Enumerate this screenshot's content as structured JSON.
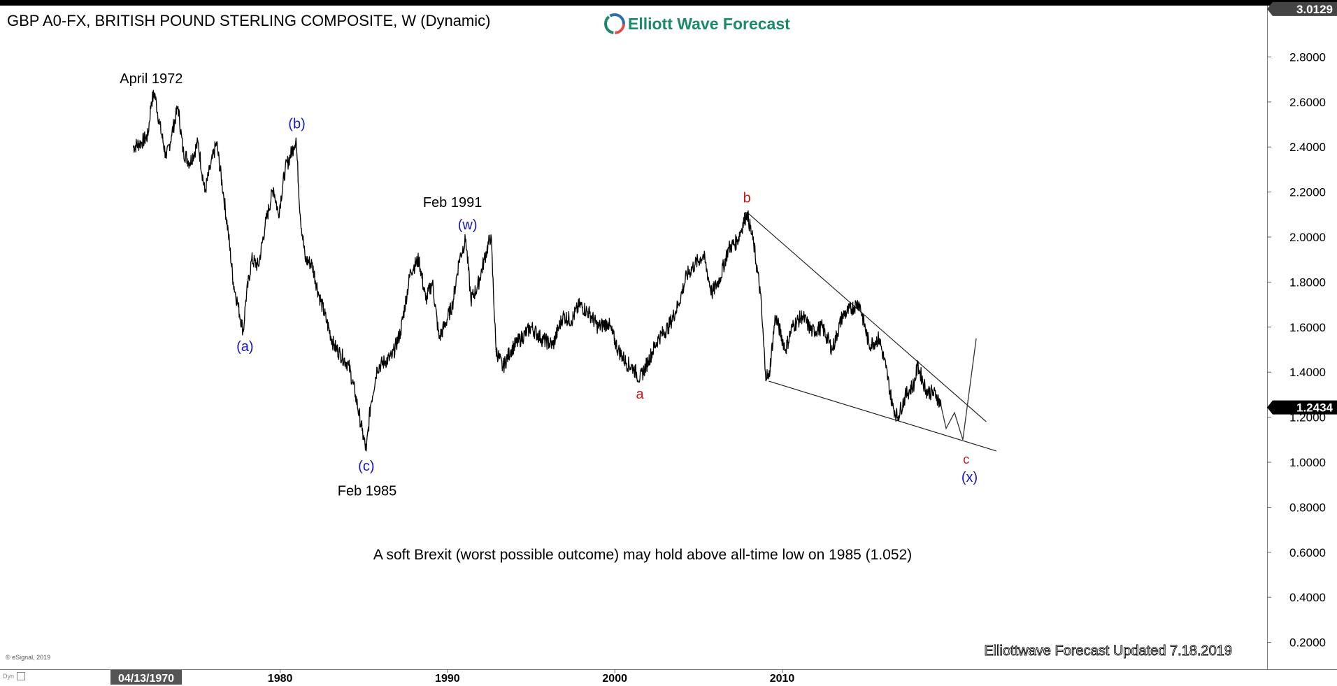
{
  "window": {
    "title": "GBP A0-FX, BRITISH POUND STERLING COMPOSITE, W (Dynamic)",
    "brand_name": "Elliott Wave Forecast",
    "copyright": "© eSignal, 2019",
    "dyn_label": "Dyn",
    "footer_note": "Elliottwave Forecast  Updated 7.18.2019"
  },
  "colors": {
    "price_line": "#000000",
    "wave_blue": "#1515c8",
    "wave_red": "#c81515",
    "current_price_tag_bg": "#000000",
    "current_price_tag_fg": "#ffffff",
    "top_price_tag_bg": "#444444",
    "brand": "#1a8a6a"
  },
  "chart_data": {
    "type": "line",
    "title": "GBP A0-FX, BRITISH POUND STERLING COMPOSITE, W (Dynamic)",
    "ylim": [
      0.1,
      3.0129
    ],
    "y_ticks": [
      "0.2000",
      "0.4000",
      "0.6000",
      "0.8000",
      "1.0000",
      "1.2000",
      "1.4000",
      "1.6000",
      "1.8000",
      "2.0000",
      "2.2000",
      "2.4000",
      "2.6000",
      "2.8000"
    ],
    "y_tick_values": [
      0.2,
      0.4,
      0.6,
      0.8,
      1.0,
      1.2,
      1.4,
      1.6,
      1.8,
      2.0,
      2.2,
      2.4,
      2.6,
      2.8
    ],
    "x_start_label": "04/13/1970",
    "x_ticks": [
      "1980",
      "1990",
      "2000",
      "2010"
    ],
    "x_tick_values": [
      1980,
      1990,
      2000,
      2010
    ],
    "current_price": "1.2434",
    "current_price_value": 1.2434,
    "top_price": "3.0129",
    "top_price_value": 3.0129,
    "grid": false,
    "series": [
      {
        "values": [
          [
            1971.2,
            2.4
          ],
          [
            1971.7,
            2.42
          ],
          [
            1972.1,
            2.45
          ],
          [
            1972.3,
            2.6
          ],
          [
            1972.5,
            2.64
          ],
          [
            1972.8,
            2.5
          ],
          [
            1973.2,
            2.35
          ],
          [
            1973.5,
            2.45
          ],
          [
            1973.9,
            2.58
          ],
          [
            1974.2,
            2.38
          ],
          [
            1974.6,
            2.33
          ],
          [
            1975.1,
            2.42
          ],
          [
            1975.5,
            2.2
          ],
          [
            1975.8,
            2.3
          ],
          [
            1976.2,
            2.42
          ],
          [
            1976.6,
            2.2
          ],
          [
            1976.9,
            2.02
          ],
          [
            1977.2,
            1.8
          ],
          [
            1977.5,
            1.69
          ],
          [
            1977.8,
            1.58
          ],
          [
            1977.95,
            1.72
          ],
          [
            1978.3,
            1.9
          ],
          [
            1978.7,
            1.87
          ],
          [
            1979.1,
            2.05
          ],
          [
            1979.6,
            2.22
          ],
          [
            1979.9,
            2.1
          ],
          [
            1980.3,
            2.3
          ],
          [
            1980.8,
            2.4
          ],
          [
            1980.95,
            2.44
          ],
          [
            1981.2,
            2.1
          ],
          [
            1981.5,
            1.9
          ],
          [
            1981.9,
            1.88
          ],
          [
            1982.3,
            1.75
          ],
          [
            1982.8,
            1.62
          ],
          [
            1983.2,
            1.52
          ],
          [
            1983.6,
            1.48
          ],
          [
            1984.1,
            1.43
          ],
          [
            1984.5,
            1.3
          ],
          [
            1984.9,
            1.14
          ],
          [
            1985.15,
            1.05
          ],
          [
            1985.4,
            1.25
          ],
          [
            1985.8,
            1.42
          ],
          [
            1986.3,
            1.45
          ],
          [
            1986.7,
            1.47
          ],
          [
            1987.2,
            1.58
          ],
          [
            1987.8,
            1.85
          ],
          [
            1988.3,
            1.9
          ],
          [
            1988.7,
            1.72
          ],
          [
            1989.1,
            1.8
          ],
          [
            1989.5,
            1.55
          ],
          [
            1989.9,
            1.62
          ],
          [
            1990.3,
            1.7
          ],
          [
            1990.7,
            1.9
          ],
          [
            1991.1,
            1.99
          ],
          [
            1991.4,
            1.72
          ],
          [
            1991.8,
            1.78
          ],
          [
            1992.2,
            1.9
          ],
          [
            1992.6,
            2.01
          ],
          [
            1992.9,
            1.5
          ],
          [
            1993.3,
            1.42
          ],
          [
            1993.8,
            1.5
          ],
          [
            1994.4,
            1.55
          ],
          [
            1995.0,
            1.6
          ],
          [
            1995.6,
            1.55
          ],
          [
            1996.3,
            1.52
          ],
          [
            1996.9,
            1.65
          ],
          [
            1997.4,
            1.63
          ],
          [
            1997.9,
            1.7
          ],
          [
            1998.5,
            1.66
          ],
          [
            1999.0,
            1.6
          ],
          [
            1999.6,
            1.62
          ],
          [
            2000.2,
            1.5
          ],
          [
            2000.7,
            1.44
          ],
          [
            2001.1,
            1.42
          ],
          [
            2001.5,
            1.37
          ],
          [
            2002.0,
            1.45
          ],
          [
            2002.6,
            1.55
          ],
          [
            2003.2,
            1.6
          ],
          [
            2003.8,
            1.7
          ],
          [
            2004.3,
            1.83
          ],
          [
            2004.8,
            1.88
          ],
          [
            2005.3,
            1.92
          ],
          [
            2005.8,
            1.75
          ],
          [
            2006.3,
            1.82
          ],
          [
            2006.8,
            1.95
          ],
          [
            2007.3,
            1.98
          ],
          [
            2007.9,
            2.11
          ],
          [
            2008.3,
            1.97
          ],
          [
            2008.7,
            1.75
          ],
          [
            2009.0,
            1.4
          ],
          [
            2009.2,
            1.37
          ],
          [
            2009.6,
            1.65
          ],
          [
            2010.2,
            1.5
          ],
          [
            2010.6,
            1.6
          ],
          [
            2011.2,
            1.65
          ],
          [
            2011.8,
            1.58
          ],
          [
            2012.4,
            1.6
          ],
          [
            2013.0,
            1.5
          ],
          [
            2013.6,
            1.65
          ],
          [
            2014.6,
            1.71
          ],
          [
            2015.2,
            1.52
          ],
          [
            2015.8,
            1.55
          ],
          [
            2016.2,
            1.42
          ],
          [
            2016.6,
            1.25
          ],
          [
            2016.9,
            1.2
          ],
          [
            2017.4,
            1.3
          ],
          [
            2017.9,
            1.35
          ],
          [
            2018.1,
            1.43
          ],
          [
            2018.6,
            1.32
          ],
          [
            2019.2,
            1.3
          ],
          [
            2019.5,
            1.25
          ]
        ]
      }
    ],
    "projection": [
      [
        2019.5,
        1.25
      ],
      [
        2019.8,
        1.15
      ],
      [
        2020.3,
        1.22
      ],
      [
        2020.8,
        1.1
      ],
      [
        2021.6,
        1.55
      ]
    ],
    "trendlines": [
      {
        "from": [
          2007.9,
          2.11
        ],
        "to": [
          2022.2,
          1.18
        ]
      },
      {
        "from": [
          2009.2,
          1.36
        ],
        "to": [
          2022.8,
          1.05
        ]
      }
    ],
    "annotations": [
      {
        "text": "April 1972",
        "x": 1972.3,
        "y": 2.64,
        "color": "#000000",
        "pos": "above",
        "size": 20
      },
      {
        "text": "(b)",
        "x": 1981.0,
        "y": 2.44,
        "color": "#1515c8",
        "pos": "above",
        "size": 20
      },
      {
        "text": "(a)",
        "x": 1977.9,
        "y": 1.58,
        "color": "#1515c8",
        "pos": "below",
        "size": 20
      },
      {
        "text": "(c)",
        "x": 1985.15,
        "y": 1.05,
        "color": "#1515c8",
        "pos": "below",
        "size": 20
      },
      {
        "text": "Feb 1985",
        "x": 1985.2,
        "y": 0.94,
        "color": "#000000",
        "pos": "below",
        "size": 20
      },
      {
        "text": "(w)",
        "x": 1991.2,
        "y": 1.99,
        "color": "#1515c8",
        "pos": "above",
        "size": 20
      },
      {
        "text": "Feb 1991",
        "x": 1990.3,
        "y": 2.09,
        "color": "#000000",
        "pos": "above",
        "size": 20
      },
      {
        "text": "a",
        "x": 2001.5,
        "y": 1.37,
        "color": "#c81515",
        "pos": "below",
        "size": 20
      },
      {
        "text": "b",
        "x": 2007.9,
        "y": 2.11,
        "color": "#c81515",
        "pos": "above",
        "size": 20
      },
      {
        "text": "c",
        "x": 2021.0,
        "y": 1.08,
        "color": "#c81515",
        "pos": "below",
        "size": 18
      },
      {
        "text": "(x)",
        "x": 2021.2,
        "y": 1.0,
        "color": "#1515c8",
        "pos": "below",
        "size": 20
      }
    ],
    "note": "A soft Brexit (worst possible outcome) may hold above all-time low on 1985 (1.052)"
  }
}
